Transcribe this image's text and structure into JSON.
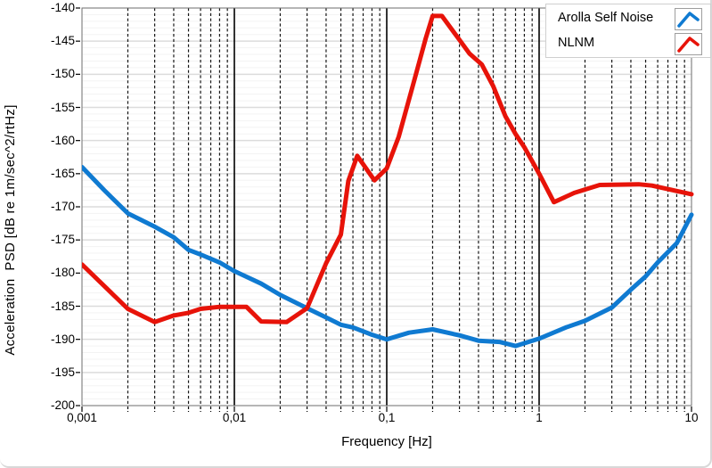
{
  "window": {
    "background": "#ffffff",
    "border_color": "#d8d8d8"
  },
  "chart_data": {
    "type": "line",
    "title": "",
    "xlabel": "Frequency [Hz]",
    "ylabel": "Acceleration  PSD [dB re 1m/sec^2/rtHz]",
    "x_scale": "log",
    "xlim": [
      0.001,
      10
    ],
    "ylim": [
      -200,
      -140
    ],
    "x_tick_values": [
      0.001,
      0.01,
      0.1,
      1,
      10
    ],
    "x_tick_labels": [
      "0,001",
      "0,01",
      "0,1",
      "1",
      "10"
    ],
    "y_major_step": 5,
    "y_minor_step": 1,
    "y_tick_labels": [
      "-140",
      "-145",
      "-150",
      "-155",
      "-160",
      "-165",
      "-170",
      "-175",
      "-180",
      "-185",
      "-190",
      "-195",
      "-200"
    ],
    "grid": {
      "h_major_color": "#dcdcdc",
      "h_minor_color": "#f3f3f3",
      "v_minor_color": "#161616",
      "v_minor_style": "dashed",
      "v_decade_color": "#000000",
      "frame_color": "#6e6e6e"
    },
    "legend": {
      "position": "top-right",
      "entries": [
        "Arolla Self Noise",
        "NLNM"
      ]
    },
    "series": [
      {
        "name": "Arolla Self Noise",
        "color": "#0f7ad1",
        "points": [
          [
            0.001,
            -164.0
          ],
          [
            0.0014,
            -167.5
          ],
          [
            0.002,
            -171.0
          ],
          [
            0.003,
            -173.0
          ],
          [
            0.004,
            -174.6
          ],
          [
            0.005,
            -176.5
          ],
          [
            0.006,
            -177.2
          ],
          [
            0.008,
            -178.4
          ],
          [
            0.01,
            -179.7
          ],
          [
            0.015,
            -181.6
          ],
          [
            0.02,
            -183.3
          ],
          [
            0.03,
            -185.3
          ],
          [
            0.04,
            -186.7
          ],
          [
            0.05,
            -187.8
          ],
          [
            0.06,
            -188.2
          ],
          [
            0.08,
            -189.3
          ],
          [
            0.1,
            -190.0
          ],
          [
            0.14,
            -189.0
          ],
          [
            0.2,
            -188.5
          ],
          [
            0.3,
            -189.4
          ],
          [
            0.4,
            -190.2
          ],
          [
            0.55,
            -190.4
          ],
          [
            0.7,
            -191.0
          ],
          [
            1.0,
            -189.9
          ],
          [
            1.5,
            -188.2
          ],
          [
            2.0,
            -187.2
          ],
          [
            3.0,
            -185.2
          ],
          [
            4.0,
            -182.5
          ],
          [
            5.0,
            -180.5
          ],
          [
            6.0,
            -178.4
          ],
          [
            8.0,
            -175.5
          ],
          [
            10.0,
            -171.2
          ]
        ]
      },
      {
        "name": "NLNM",
        "color": "#e71309",
        "points": [
          [
            0.001,
            -178.7
          ],
          [
            0.002,
            -185.4
          ],
          [
            0.003,
            -187.4
          ],
          [
            0.004,
            -186.4
          ],
          [
            0.005,
            -186.0
          ],
          [
            0.006,
            -185.4
          ],
          [
            0.008,
            -185.1
          ],
          [
            0.012,
            -185.1
          ],
          [
            0.015,
            -187.3
          ],
          [
            0.022,
            -187.4
          ],
          [
            0.03,
            -185.3
          ],
          [
            0.04,
            -178.5
          ],
          [
            0.05,
            -174.2
          ],
          [
            0.056,
            -166.1
          ],
          [
            0.064,
            -162.3
          ],
          [
            0.083,
            -166.0
          ],
          [
            0.1,
            -164.2
          ],
          [
            0.12,
            -159.4
          ],
          [
            0.15,
            -151.3
          ],
          [
            0.18,
            -144.6
          ],
          [
            0.2,
            -141.2
          ],
          [
            0.23,
            -141.2
          ],
          [
            0.3,
            -144.8
          ],
          [
            0.35,
            -146.9
          ],
          [
            0.42,
            -148.5
          ],
          [
            0.5,
            -151.8
          ],
          [
            0.6,
            -156.3
          ],
          [
            0.7,
            -159.0
          ],
          [
            0.8,
            -161.0
          ],
          [
            1.0,
            -165.0
          ],
          [
            1.25,
            -169.3
          ],
          [
            1.7,
            -167.9
          ],
          [
            2.5,
            -166.7
          ],
          [
            4.5,
            -166.6
          ],
          [
            5.5,
            -166.8
          ],
          [
            10.0,
            -168.1
          ]
        ]
      }
    ]
  }
}
